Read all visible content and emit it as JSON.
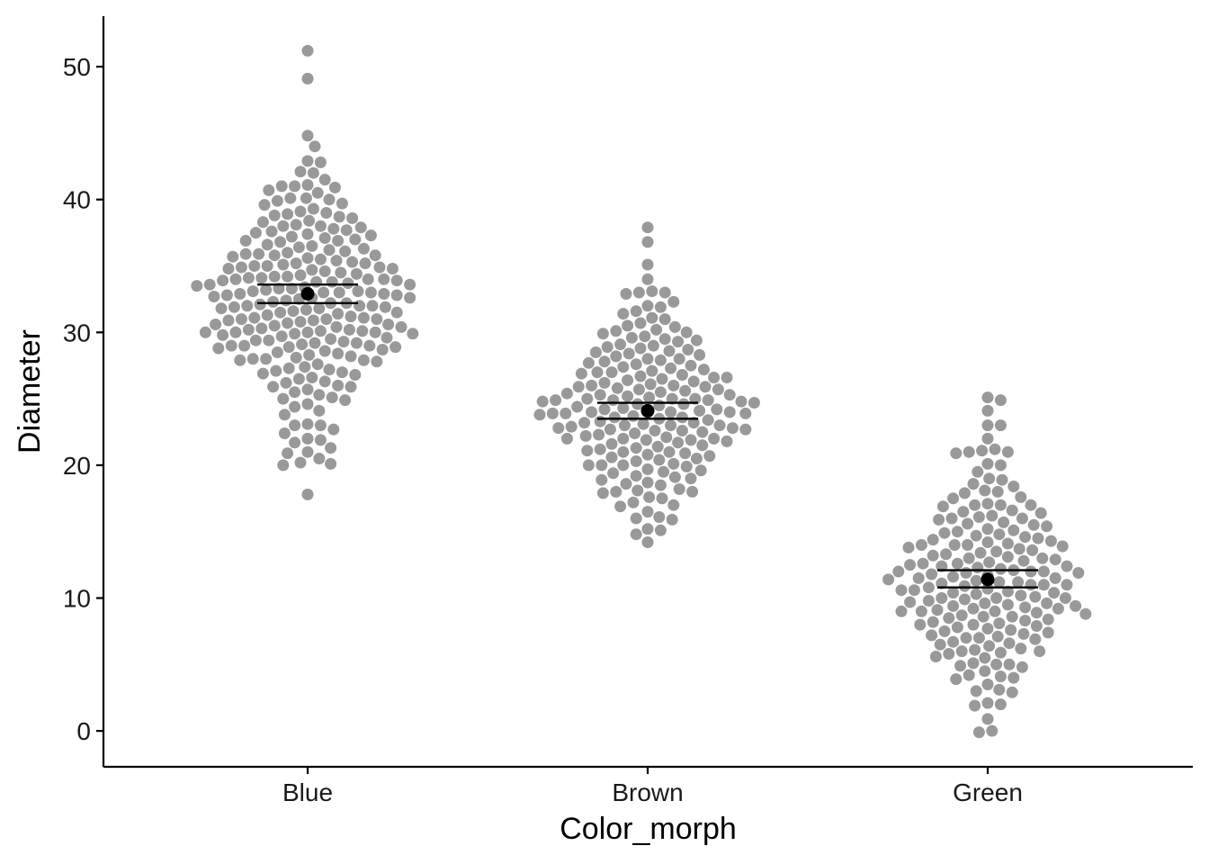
{
  "chart_data": {
    "type": "scatter",
    "subtype": "beeswarm with mean and 95% CI",
    "xlabel": "Color_morph",
    "ylabel": "Diameter",
    "categories": [
      "Blue",
      "Brown",
      "Green"
    ],
    "ylim": [
      -2.7,
      53.8
    ],
    "yticks": [
      0,
      10,
      20,
      30,
      40,
      50
    ],
    "grid": false,
    "legend": "none",
    "colors": {
      "points": "#999999",
      "summary": "#000000",
      "axis": "#000000"
    },
    "series": [
      {
        "category": "Blue",
        "mean": 32.9,
        "ci": [
          32.2,
          33.6
        ],
        "values": [
          51.2,
          49.1,
          44.8,
          44.0,
          42.9,
          42.8,
          42.0,
          41.1,
          41.0,
          41.0,
          40.9,
          40.1,
          40.1,
          40.0,
          39.9,
          39.1,
          39.0,
          38.9,
          38.7,
          38.1,
          38.0,
          38.0,
          37.9,
          37.8,
          37.7,
          37.3,
          37.2,
          37.0,
          36.9,
          36.2,
          36.1,
          36.0,
          35.9,
          35.8,
          35.6,
          35.4,
          35.2,
          35.1,
          35.0,
          35.0,
          34.9,
          34.9,
          34.8,
          34.5,
          34.3,
          34.2,
          34.1,
          34.1,
          34.0,
          34.0,
          34.0,
          33.9,
          33.8,
          33.6,
          33.5,
          33.3,
          33.2,
          33.1,
          33.0,
          33.0,
          32.9,
          32.8,
          32.6,
          32.4,
          32.2,
          32.1,
          32.0,
          32.0,
          32.0,
          31.9,
          31.8,
          31.5,
          31.2,
          31.1,
          31.0,
          31.0,
          31.0,
          30.9,
          30.8,
          30.4,
          30.2,
          30.1,
          30.0,
          30.0,
          30.0,
          30.0,
          29.9,
          29.7,
          29.4,
          29.2,
          29.1,
          29.0,
          29.0,
          28.9,
          28.8,
          28.3,
          28.2,
          28.0,
          28.0,
          27.9,
          27.8,
          27.3,
          27.1,
          27.0,
          26.9,
          26.0,
          25.9,
          25.9,
          25.1,
          25.0,
          24.9,
          23.1,
          23.0,
          23.0,
          22.0,
          21.9,
          21.0,
          20.9,
          20.2,
          20.1,
          20.0,
          17.8,
          42.1,
          38.8,
          36.5,
          35.7,
          34.6,
          33.7,
          32.7,
          31.7,
          30.6,
          29.6,
          28.6,
          27.6,
          26.5,
          24.6,
          33.4,
          32.3,
          31.3,
          30.3,
          29.3,
          34.4,
          36.8,
          37.5,
          39.3,
          40.5,
          35.3,
          33.9,
          32.5,
          31.6,
          30.7,
          29.8,
          28.4,
          27.4,
          26.3,
          25.5,
          34.7,
          33.6,
          32.9,
          31.4,
          30.5,
          29.5,
          28.5,
          36.3,
          37.1,
          38.3,
          39.6,
          40.7,
          35.5,
          33.1,
          32.2,
          30.9,
          28.7,
          27.2,
          26.6,
          24.4,
          22.7,
          31.9,
          30.1,
          29.0,
          33.8,
          35.8,
          37.6,
          36.6,
          34.2,
          32.6,
          31.1,
          30.4,
          29.2,
          27.9,
          26.2,
          25.3,
          23.8,
          22.4,
          21.3,
          33.3,
          34.8,
          35.9,
          36.9,
          38.4,
          39.7,
          41.5,
          32.8,
          31.5,
          30.2,
          29.4,
          28.1,
          26.8,
          25.7,
          24.1,
          21.7,
          20.5,
          35.2,
          36.4,
          37.4,
          38.6,
          33.0,
          31.8,
          30.6,
          29.9,
          28.9
        ]
      },
      {
        "category": "Brown",
        "mean": 24.1,
        "ci": [
          23.5,
          24.7
        ],
        "values": [
          37.9,
          36.8,
          35.1,
          34.0,
          33.0,
          33.0,
          32.9,
          32.0,
          31.9,
          31.1,
          31.0,
          30.2,
          30.1,
          30.0,
          29.9,
          29.1,
          29.0,
          28.9,
          28.2,
          28.0,
          28.0,
          27.9,
          27.2,
          27.0,
          27.0,
          26.9,
          26.2,
          26.0,
          26.0,
          25.9,
          25.9,
          25.2,
          25.1,
          25.0,
          25.0,
          25.0,
          24.9,
          24.9,
          24.8,
          24.2,
          24.1,
          24.0,
          24.0,
          24.0,
          24.0,
          23.9,
          23.9,
          23.2,
          23.1,
          23.0,
          23.0,
          23.0,
          22.9,
          22.8,
          22.2,
          22.1,
          22.0,
          22.0,
          22.0,
          21.9,
          21.8,
          21.1,
          21.0,
          21.0,
          20.9,
          20.3,
          20.1,
          20.0,
          20.0,
          20.0,
          19.9,
          19.2,
          19.1,
          19.0,
          18.9,
          18.2,
          18.1,
          18.0,
          18.0,
          17.9,
          17.2,
          17.0,
          16.9,
          16.1,
          16.0,
          15.9,
          15.2,
          15.1,
          14.8,
          14.2,
          33.1,
          31.6,
          30.5,
          29.5,
          28.6,
          27.5,
          26.5,
          25.5,
          24.5,
          23.5,
          22.5,
          21.5,
          20.5,
          19.5,
          18.5,
          17.5,
          16.5,
          32.3,
          30.7,
          29.7,
          28.4,
          27.6,
          26.7,
          25.7,
          24.6,
          23.6,
          22.6,
          21.6,
          20.6,
          19.6,
          18.6,
          17.6,
          31.4,
          29.4,
          28.7,
          27.7,
          26.6,
          25.6,
          24.7,
          23.7,
          22.7,
          21.7,
          20.7,
          19.7,
          18.7,
          30.4,
          28.3,
          27.4,
          26.4,
          25.4,
          24.4,
          23.4,
          22.4,
          21.4,
          20.4,
          19.4,
          29.3,
          27.3,
          26.3,
          25.3,
          24.3,
          23.3,
          22.3,
          21.3,
          28.5,
          26.8,
          25.8,
          24.6,
          23.8,
          22.8,
          27.8,
          26.1,
          25.3,
          24.2,
          23.6,
          22.6,
          21.2,
          28.8,
          27.1,
          25.7,
          24.8,
          23.2,
          21.9,
          20.8,
          29.6,
          26.6,
          24.9,
          23.9,
          22.7
        ]
      },
      {
        "category": "Green",
        "mean": 11.4,
        "ci": [
          10.8,
          12.1
        ],
        "values": [
          25.1,
          24.9,
          24.1,
          23.0,
          23.0,
          22.0,
          21.2,
          21.1,
          21.0,
          21.0,
          20.9,
          20.1,
          20.0,
          19.0,
          18.9,
          18.1,
          18.0,
          17.9,
          17.1,
          17.0,
          17.0,
          17.0,
          16.9,
          16.1,
          16.0,
          16.0,
          15.9,
          15.2,
          15.1,
          15.0,
          14.9,
          14.2,
          14.1,
          14.0,
          14.0,
          14.0,
          13.9,
          13.2,
          13.1,
          13.0,
          13.0,
          12.9,
          12.8,
          12.2,
          12.1,
          12.0,
          12.0,
          12.0,
          11.9,
          11.9,
          11.2,
          11.1,
          11.0,
          11.0,
          11.0,
          10.9,
          10.8,
          10.2,
          10.1,
          10.0,
          10.0,
          10.0,
          9.9,
          9.8,
          9.2,
          9.1,
          9.0,
          9.0,
          9.0,
          8.9,
          8.8,
          8.2,
          8.1,
          8.0,
          8.0,
          7.9,
          7.8,
          7.2,
          7.1,
          7.0,
          7.0,
          6.9,
          6.2,
          6.1,
          6.0,
          6.0,
          5.9,
          5.8,
          5.1,
          5.0,
          5.0,
          4.9,
          4.8,
          4.2,
          4.1,
          4.0,
          3.9,
          3.1,
          3.0,
          2.9,
          2.1,
          2.0,
          1.9,
          0.9,
          0.0,
          -0.1,
          19.5,
          18.4,
          17.5,
          16.5,
          15.5,
          14.5,
          13.5,
          12.5,
          11.5,
          10.5,
          9.5,
          8.5,
          7.5,
          6.5,
          5.5,
          4.5,
          18.6,
          16.6,
          15.6,
          14.6,
          13.6,
          12.6,
          11.6,
          10.6,
          9.6,
          8.6,
          7.6,
          6.6,
          5.6,
          3.5,
          17.6,
          15.4,
          14.4,
          13.4,
          12.4,
          11.4,
          10.4,
          9.4,
          8.4,
          7.4,
          6.4,
          16.4,
          14.7,
          13.7,
          12.7,
          11.7,
          10.7,
          9.7,
          8.7,
          7.7,
          6.7,
          15.7,
          13.3,
          12.3,
          11.3,
          10.3,
          9.3,
          8.3,
          7.3,
          14.3,
          12.6,
          11.8,
          10.6,
          9.6,
          8.6,
          13.8,
          11.5,
          10.4,
          9.4,
          16.2,
          14.8,
          12.4,
          11.2,
          9.2
        ]
      }
    ]
  }
}
